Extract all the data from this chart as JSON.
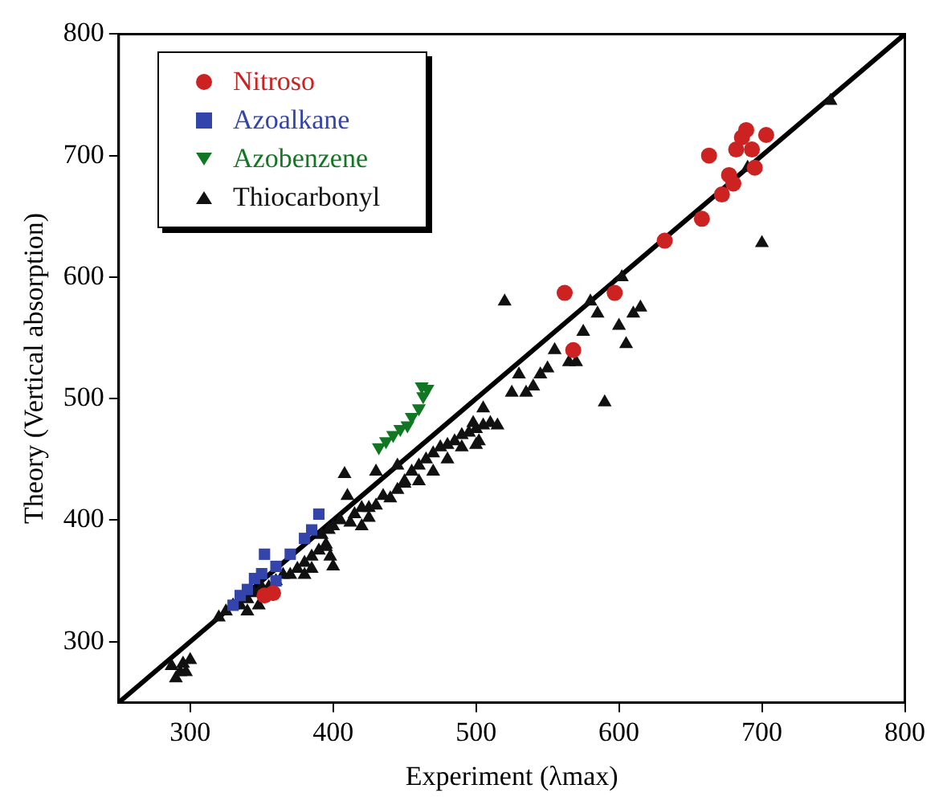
{
  "chart_data": {
    "type": "scatter",
    "xlabel": "Experiment (λmax)",
    "ylabel": "Theory (Vertical absorption)",
    "xlim": [
      250,
      800
    ],
    "ylim": [
      250,
      800
    ],
    "xticks": [
      300,
      400,
      500,
      600,
      700,
      800
    ],
    "yticks": [
      300,
      400,
      500,
      600,
      700,
      800
    ],
    "grid": false,
    "legend": "top left",
    "series": [
      {
        "name": "Nitroso",
        "color": "#cc2222",
        "marker": "circle",
        "x": [
          568,
          562,
          597,
          632,
          658,
          663,
          672,
          677,
          680,
          682,
          686,
          689,
          693,
          695,
          703,
          352,
          358
        ],
        "values": [
          540,
          587,
          587,
          630,
          648,
          700,
          668,
          684,
          677,
          705,
          715,
          721,
          705,
          690,
          717,
          338,
          340
        ]
      },
      {
        "name": "Azoalkane",
        "color": "#3344aa",
        "marker": "square",
        "x": [
          330,
          335,
          340,
          345,
          350,
          352,
          360,
          370,
          380,
          390,
          385,
          360
        ],
        "values": [
          330,
          338,
          343,
          352,
          356,
          372,
          362,
          372,
          385,
          405,
          392,
          350
        ]
      },
      {
        "name": "Azobenzene",
        "color": "#117722",
        "marker": "triangle_down",
        "x": [
          432,
          437,
          442,
          447,
          452,
          455,
          460,
          463,
          466,
          462
        ],
        "values": [
          460,
          465,
          470,
          475,
          478,
          485,
          492,
          502,
          508,
          510
        ]
      },
      {
        "name": "Thiocarbonyl",
        "color": "#111111",
        "marker": "triangle",
        "x": [
          290,
          293,
          295,
          300,
          287,
          297,
          320,
          325,
          330,
          335,
          340,
          345,
          350,
          355,
          340,
          348,
          360,
          365,
          370,
          375,
          380,
          385,
          390,
          395,
          392,
          397,
          400,
          398,
          400,
          395,
          405,
          410,
          415,
          420,
          425,
          430,
          435,
          440,
          445,
          450,
          455,
          460,
          465,
          470,
          475,
          480,
          485,
          490,
          495,
          500,
          505,
          502,
          498,
          505,
          408,
          430,
          445,
          450,
          460,
          470,
          480,
          490,
          500,
          510,
          515,
          520,
          525,
          530,
          535,
          540,
          545,
          550,
          555,
          565,
          570,
          575,
          580,
          585,
          590,
          600,
          605,
          610,
          615,
          602,
          690,
          700,
          748,
          420,
          425,
          412,
          380,
          385
        ],
        "values": [
          270,
          275,
          282,
          285,
          280,
          275,
          320,
          325,
          330,
          330,
          335,
          340,
          345,
          345,
          325,
          330,
          350,
          355,
          355,
          360,
          365,
          370,
          375,
          380,
          388,
          392,
          395,
          370,
          362,
          378,
          400,
          420,
          405,
          410,
          410,
          412,
          420,
          418,
          425,
          432,
          440,
          445,
          450,
          455,
          460,
          462,
          465,
          470,
          472,
          475,
          478,
          465,
          480,
          492,
          438,
          440,
          445,
          430,
          432,
          440,
          450,
          460,
          462,
          480,
          478,
          580,
          505,
          520,
          505,
          510,
          520,
          525,
          540,
          530,
          530,
          555,
          580,
          570,
          497,
          560,
          545,
          570,
          575,
          600,
          690,
          628,
          745,
          395,
          402,
          398,
          355,
          360
        ]
      },
      {
        "type": "line",
        "color": "#000000",
        "marker": "none",
        "x": [
          250,
          800
        ],
        "values": [
          250,
          800
        ]
      }
    ]
  }
}
